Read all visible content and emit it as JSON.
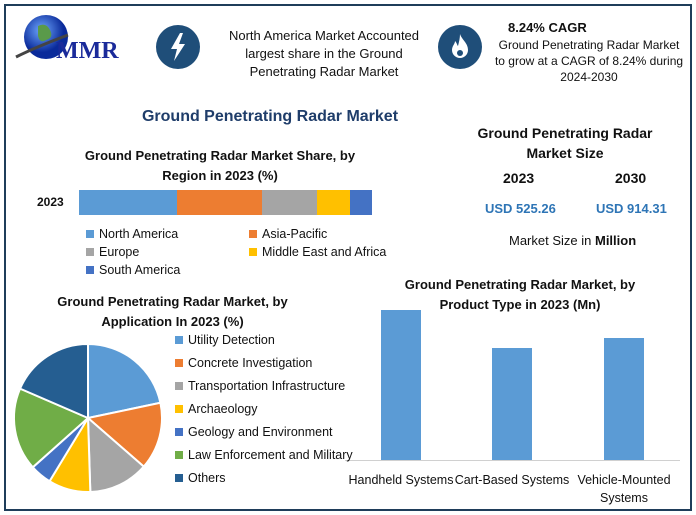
{
  "header": {
    "logo_text": "MMR",
    "highlight1": "North America Market Accounted largest share in the Ground Penetrating Radar Market",
    "cagr_title": "8.24% CAGR",
    "cagr_text": "Ground Penetrating Radar Market to grow at a CAGR of 8.24% during 2024-2030"
  },
  "main_title": "Ground Penetrating Radar Market",
  "market_size": {
    "title": "Ground Penetrating Radar Market Size",
    "year1": "2023",
    "year2": "2030",
    "value1": "USD 525.26",
    "value2": "USD 914.31",
    "unit_label": "Market Size in ",
    "unit_bold": "Million"
  },
  "colors": {
    "dark": "#1f4e79",
    "blue": "#5b9bd5",
    "orange": "#ed7d31",
    "gray": "#a5a5a5",
    "yellow": "#ffc000",
    "mid": "#4472c4",
    "green": "#70ad47",
    "navy": "#255e91"
  },
  "chart_data": [
    {
      "type": "bar",
      "stacked": true,
      "title": "Ground Penetrating Radar Market Share, by Region in 2023 (%)",
      "categories": [
        "2023"
      ],
      "series": [
        {
          "name": "North America",
          "values": [
            33.4
          ]
        },
        {
          "name": "Asia-Pacific",
          "values": [
            29.0
          ]
        },
        {
          "name": "Europe",
          "values": [
            18.8
          ]
        },
        {
          "name": "Middle East and Africa",
          "values": [
            11.3
          ]
        },
        {
          "name": "South America",
          "values": [
            7.5
          ]
        }
      ],
      "legend": "bottom"
    },
    {
      "type": "pie",
      "title": "Ground Penetrating Radar Market, by Application In 2023 (%)",
      "labels": [
        "Utility Detection",
        "Concrete Investigation",
        "Transportation Infrastructure",
        "Archaeology",
        "Geology and Environment",
        "Law Enforcement and Military",
        "Others"
      ],
      "values": [
        21.7,
        14.7,
        13.1,
        9.2,
        4.7,
        18.1,
        18.5
      ],
      "legend": "right"
    },
    {
      "type": "bar",
      "title": "Ground Penetrating Radar Market, by Product Type in 2023 (Mn)",
      "categories": [
        "Handheld Systems",
        "Cart-Based Systems",
        "Vehicle-Mounted Systems"
      ],
      "values": [
        205,
        153,
        167
      ]
    }
  ]
}
